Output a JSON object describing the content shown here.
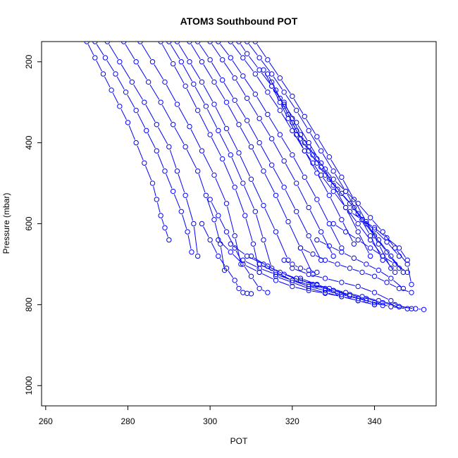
{
  "chart_data": {
    "type": "line",
    "title": "ATOM3 Southbound POT",
    "xlabel": "POT",
    "ylabel": "Pressure (mbar)",
    "xlim": [
      259,
      355
    ],
    "ylim": [
      1050,
      150
    ],
    "y_reversed": true,
    "x_ticks": [
      260,
      280,
      300,
      320,
      340
    ],
    "y_ticks": [
      200,
      400,
      600,
      800,
      1000
    ],
    "grid": false,
    "legend": "none",
    "series_color": "#0000ff",
    "marker": "open-circle",
    "series": [
      {
        "x": [
          270,
          272,
          274,
          276,
          278,
          280,
          282,
          284,
          286,
          287,
          288,
          289,
          290
        ],
        "y": [
          150,
          190,
          230,
          270,
          310,
          350,
          400,
          450,
          500,
          540,
          580,
          610,
          640
        ]
      },
      {
        "x": [
          272,
          274.5,
          277,
          279.5,
          282,
          284.5,
          287,
          289,
          291,
          293,
          294.5,
          295.5
        ],
        "y": [
          150,
          190,
          230,
          275,
          320,
          370,
          420,
          470,
          520,
          570,
          620,
          670
        ]
      },
      {
        "x": [
          275,
          278,
          281,
          284,
          287,
          290,
          292,
          294,
          296,
          297
        ],
        "y": [
          150,
          200,
          250,
          300,
          355,
          410,
          470,
          530,
          600,
          680
        ]
      },
      {
        "x": [
          279,
          282,
          285,
          288,
          291,
          294,
          297,
          299,
          301,
          302.5,
          303.5
        ],
        "y": [
          150,
          200,
          250,
          300,
          355,
          410,
          470,
          530,
          590,
          650,
          715
        ]
      },
      {
        "x": [
          283,
          286,
          289,
          292,
          295,
          298,
          301,
          304,
          306,
          307.5
        ],
        "y": [
          150,
          200,
          250,
          305,
          360,
          420,
          480,
          550,
          630,
          700
        ]
      },
      {
        "x": [
          288,
          291,
          294,
          297,
          300,
          303,
          306,
          308.5,
          310.5,
          312
        ],
        "y": [
          150,
          205,
          260,
          320,
          380,
          440,
          510,
          580,
          650,
          720
        ]
      },
      {
        "x": [
          290,
          293,
          296,
          299,
          302,
          305,
          308,
          311,
          313,
          315
        ],
        "y": [
          150,
          200,
          255,
          310,
          370,
          430,
          500,
          570,
          640,
          710
        ]
      },
      {
        "x": [
          292,
          295,
          298,
          301,
          304,
          307,
          310,
          313,
          316,
          319
        ],
        "y": [
          150,
          200,
          250,
          305,
          365,
          425,
          490,
          555,
          620,
          690
        ]
      },
      {
        "x": [
          295,
          298,
          301,
          304,
          307,
          310,
          313,
          316,
          319,
          322,
          325
        ],
        "y": [
          150,
          200,
          250,
          300,
          355,
          410,
          470,
          530,
          595,
          660,
          725
        ]
      },
      {
        "x": [
          297,
          300,
          303,
          306,
          309,
          312,
          315,
          318,
          321,
          324,
          327
        ],
        "y": [
          150,
          195,
          245,
          295,
          345,
          400,
          455,
          510,
          570,
          630,
          690
        ]
      },
      {
        "x": [
          300,
          303,
          306,
          309,
          312,
          315,
          318,
          321,
          324,
          327,
          330
        ],
        "y": [
          150,
          195,
          240,
          290,
          340,
          390,
          445,
          500,
          560,
          620,
          680
        ]
      },
      {
        "x": [
          302,
          305,
          308,
          311,
          314,
          317,
          320,
          323,
          326,
          329,
          332
        ],
        "y": [
          150,
          190,
          235,
          280,
          330,
          380,
          430,
          485,
          540,
          600,
          660
        ]
      },
      {
        "x": [
          305,
          308,
          311,
          314,
          317,
          320,
          323,
          326,
          329,
          332,
          335
        ],
        "y": [
          150,
          190,
          230,
          275,
          320,
          370,
          420,
          475,
          530,
          590,
          650
        ]
      },
      {
        "x": [
          307,
          309,
          312,
          315,
          318,
          321,
          324,
          327,
          330,
          333,
          336,
          339
        ],
        "y": [
          150,
          180,
          220,
          260,
          305,
          350,
          400,
          450,
          505,
          560,
          620,
          680
        ]
      },
      {
        "x": [
          309,
          312,
          315,
          318,
          321,
          324,
          327,
          330,
          333,
          336,
          339,
          342
        ],
        "y": [
          150,
          190,
          230,
          275,
          320,
          370,
          420,
          470,
          520,
          575,
          630,
          690
        ]
      },
      {
        "x": [
          311,
          314,
          317,
          320,
          323,
          326,
          329,
          332,
          335,
          338,
          341,
          344
        ],
        "y": [
          150,
          195,
          240,
          285,
          335,
          385,
          435,
          485,
          540,
          595,
          650,
          710
        ]
      },
      {
        "x": [
          313,
          315,
          317,
          319,
          321,
          323,
          325,
          327,
          330,
          333,
          336,
          339,
          342,
          345
        ],
        "y": [
          220,
          260,
          300,
          340,
          380,
          420,
          450,
          480,
          520,
          560,
          600,
          640,
          680,
          720
        ]
      },
      {
        "x": [
          314,
          316,
          318,
          320,
          322,
          324,
          326,
          328,
          331,
          334,
          337,
          340,
          343,
          346
        ],
        "y": [
          230,
          270,
          310,
          350,
          390,
          420,
          450,
          480,
          515,
          550,
          590,
          630,
          670,
          710
        ]
      },
      {
        "x": [
          315,
          317,
          319,
          321,
          323,
          325,
          327,
          329,
          332,
          335,
          338,
          341,
          344,
          347
        ],
        "y": [
          250,
          290,
          330,
          370,
          400,
          430,
          460,
          490,
          525,
          560,
          600,
          640,
          680,
          720
        ]
      },
      {
        "x": [
          318,
          320,
          322,
          324,
          326,
          328,
          330,
          333,
          336,
          339,
          342,
          345,
          348,
          349
        ],
        "y": [
          300,
          340,
          380,
          410,
          440,
          465,
          490,
          520,
          550,
          585,
          620,
          660,
          700,
          750
        ]
      },
      {
        "x": [
          300,
          302,
          304,
          306,
          308,
          310,
          312,
          314
        ],
        "y": [
          540,
          580,
          620,
          660,
          700,
          730,
          760,
          770
        ]
      },
      {
        "x": [
          298,
          300,
          302,
          304,
          306,
          307,
          308,
          309,
          310
        ],
        "y": [
          600,
          640,
          680,
          710,
          740,
          760,
          770,
          772,
          773
        ]
      },
      {
        "x": [
          302,
          305,
          308,
          312,
          316,
          320,
          324,
          328,
          332,
          336,
          340
        ],
        "y": [
          640,
          670,
          700,
          720,
          740,
          755,
          765,
          772,
          780,
          790,
          800
        ]
      },
      {
        "x": [
          305,
          309,
          313,
          317,
          321,
          325,
          329,
          333,
          337,
          341,
          345,
          349
        ],
        "y": [
          650,
          680,
          700,
          720,
          735,
          750,
          760,
          770,
          780,
          790,
          800,
          810
        ]
      },
      {
        "x": [
          310,
          314,
          318,
          322,
          326,
          330,
          334,
          338,
          342,
          346,
          350,
          352
        ],
        "y": [
          680,
          705,
          725,
          740,
          752,
          765,
          775,
          785,
          795,
          805,
          810,
          812
        ]
      },
      {
        "x": [
          312,
          316,
          320,
          324,
          328,
          332,
          336,
          340,
          344,
          348
        ],
        "y": [
          700,
          720,
          740,
          755,
          765,
          775,
          785,
          795,
          805,
          810
        ]
      },
      {
        "x": [
          308,
          312,
          316,
          320,
          324,
          328,
          331
        ],
        "y": [
          690,
          710,
          725,
          740,
          750,
          760,
          770
        ]
      },
      {
        "x": [
          320,
          324,
          328,
          332,
          336,
          340,
          344,
          346
        ],
        "y": [
          710,
          725,
          735,
          745,
          755,
          770,
          790,
          805
        ]
      },
      {
        "x": [
          322,
          325,
          328,
          331,
          334,
          337,
          340,
          343,
          346,
          349
        ],
        "y": [
          660,
          675,
          690,
          700,
          710,
          720,
          730,
          745,
          760,
          770
        ]
      },
      {
        "x": [
          326,
          329,
          332,
          335,
          338,
          341,
          344,
          347
        ],
        "y": [
          640,
          655,
          670,
          685,
          700,
          715,
          735,
          760
        ]
      },
      {
        "x": [
          330,
          333,
          336,
          339,
          342,
          345,
          348
        ],
        "y": [
          600,
          620,
          640,
          660,
          680,
          700,
          720
        ]
      },
      {
        "x": [
          334,
          337,
          340,
          343,
          346,
          348
        ],
        "y": [
          570,
          590,
          610,
          635,
          660,
          690
        ]
      },
      {
        "x": [
          337,
          340,
          343,
          346
        ],
        "y": [
          590,
          615,
          645,
          680
        ]
      },
      {
        "x": [
          316,
          320,
          324,
          328,
          332,
          336,
          340
        ],
        "y": [
          730,
          745,
          760,
          770,
          780,
          790,
          800
        ]
      },
      {
        "x": [
          322,
          326,
          330,
          334,
          338,
          342
        ],
        "y": [
          735,
          750,
          765,
          778,
          790,
          802
        ]
      },
      {
        "x": [
          318,
          320,
          322,
          324,
          326
        ],
        "y": [
          690,
          700,
          710,
          715,
          720
        ]
      }
    ]
  }
}
